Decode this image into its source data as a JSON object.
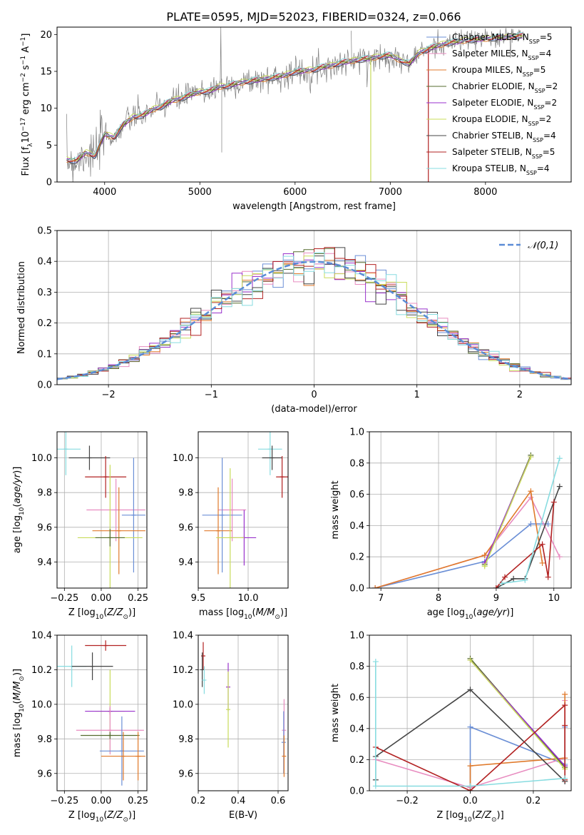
{
  "figure_title": "PLATE=0595, MJD=52023, FIBERID=0324, z=0.066",
  "colors": {
    "chabrier_miles": "#6b8fd6",
    "salpeter_miles": "#e88cc0",
    "kroupa_miles": "#e07a2b",
    "chabrier_elodie": "#556b2f",
    "salpeter_elodie": "#9932cc",
    "kroupa_elodie": "#c8dc5a",
    "chabrier_stelib": "#444444",
    "salpeter_stelib": "#b22222",
    "kroupa_stelib": "#87dce0",
    "data": "#7f7f7f",
    "gaussian": "#5b8cd6"
  },
  "chart_data": [
    {
      "id": "spectrum",
      "type": "line",
      "xlabel": "wavelength [Angstrom, rest frame]",
      "ylabel": "Flux [f_λ10^-17 erg cm^-2 s^-1 A^-1]",
      "xlim": [
        3500,
        8900
      ],
      "ylim": [
        0,
        21
      ],
      "xticks": [
        4000,
        5000,
        6000,
        7000,
        8000
      ],
      "yticks": [
        0,
        5,
        10,
        15,
        20
      ],
      "legend_position": "upper right",
      "legend": [
        {
          "text": "Chabrier MILES, N",
          "sub": "SSP",
          "val": "=5",
          "color": "chabrier_miles"
        },
        {
          "text": "Salpeter MILES, N",
          "sub": "SSP",
          "val": "=4",
          "color": "salpeter_miles"
        },
        {
          "text": "Kroupa MILES, N",
          "sub": "SSP",
          "val": "=5",
          "color": "kroupa_miles"
        },
        {
          "text": "Chabrier ELODIE, N",
          "sub": "SSP",
          "val": "=2",
          "color": "chabrier_elodie"
        },
        {
          "text": "Salpeter ELODIE, N",
          "sub": "SSP",
          "val": "=2",
          "color": "salpeter_elodie"
        },
        {
          "text": "Kroupa ELODIE, N",
          "sub": "SSP",
          "val": "=2",
          "color": "kroupa_elodie"
        },
        {
          "text": "Chabrier STELIB, N",
          "sub": "SSP",
          "val": "=4",
          "color": "chabrier_stelib"
        },
        {
          "text": "Salpeter STELIB, N",
          "sub": "SSP",
          "val": "=5",
          "color": "salpeter_stelib"
        },
        {
          "text": "Kroupa STELIB, N",
          "sub": "SSP",
          "val": "=4",
          "color": "kroupa_stelib"
        }
      ],
      "continuum": {
        "x": [
          3600,
          3700,
          3800,
          3900,
          4000,
          4100,
          4200,
          4300,
          4400,
          4500,
          4600,
          4700,
          4800,
          4900,
          5000,
          5100,
          5200,
          5300,
          5400,
          5500,
          5600,
          5700,
          5800,
          5900,
          6000,
          6100,
          6200,
          6300,
          6400,
          6500,
          6600,
          6700,
          6800,
          6900,
          7000,
          7100,
          7200,
          7300,
          7400,
          7500,
          7600,
          7700,
          7800,
          7900,
          8000,
          8100,
          8200,
          8300,
          8400
        ],
        "y": [
          3.0,
          2.8,
          4.0,
          3.5,
          6.5,
          6.0,
          7.8,
          8.8,
          9.0,
          9.8,
          10.2,
          11.0,
          11.3,
          11.8,
          12.2,
          12.3,
          12.9,
          13.0,
          13.4,
          13.6,
          13.8,
          14.0,
          14.2,
          14.5,
          14.9,
          15.1,
          15.2,
          15.6,
          15.8,
          16.2,
          16.4,
          16.6,
          16.8,
          17.0,
          17.2,
          16.5,
          16.0,
          17.5,
          18.0,
          18.5,
          18.8,
          19.0,
          19.2,
          19.3,
          19.4,
          19.5,
          19.6,
          19.7,
          19.8
        ]
      },
      "model_offsets": [
        0.0,
        0.15,
        -0.1,
        0.05,
        -0.05,
        0.2,
        -0.15,
        0.1,
        0.25
      ],
      "dropouts": [
        {
          "model": "kroupa_elodie",
          "x": 6795
        },
        {
          "model": "salpeter_stelib",
          "x": 7400
        }
      ]
    },
    {
      "id": "residuals",
      "type": "histogram",
      "xlabel": "(data-model)/error",
      "ylabel": "Normed distribution",
      "xlim": [
        -2.5,
        2.5
      ],
      "ylim": [
        0,
        0.5
      ],
      "xticks": [
        -2,
        -1,
        0,
        1,
        2
      ],
      "yticks": [
        0.0,
        0.1,
        0.2,
        0.3,
        0.4,
        0.5
      ],
      "legend": "𝒩(0,1)",
      "bins": {
        "start": -2.5,
        "width": 0.1,
        "count": 50
      },
      "gaussian": {
        "mean": 0,
        "sigma": 1
      }
    },
    {
      "id": "age_vs_Z",
      "type": "errorbar",
      "xlabel": "Z [log10(Z/Z⊙)]",
      "ylabel": "age  [log10(age/yr)]",
      "xlim": [
        -0.3,
        0.31
      ],
      "ylim": [
        9.25,
        10.15
      ],
      "xticks": [
        -0.25,
        0.0,
        0.25
      ],
      "yticks": [
        9.4,
        9.6,
        9.8,
        10.0
      ],
      "points": [
        {
          "m": "kroupa_stelib",
          "x": -0.24,
          "xe": 0.1,
          "y": 10.05,
          "ye": 0.15
        },
        {
          "m": "chabrier_stelib",
          "x": -0.08,
          "xe": 0.14,
          "y": 10.0,
          "ye": 0.07
        },
        {
          "m": "salpeter_stelib",
          "x": 0.03,
          "xe": 0.14,
          "y": 9.89,
          "ye": 0.12
        },
        {
          "m": "salpeter_miles",
          "x": 0.1,
          "xe": 0.2,
          "y": 9.7,
          "ye": 0.18
        },
        {
          "m": "chabrier_miles",
          "x": 0.22,
          "xe": 0.08,
          "y": 9.67,
          "ye": 0.33
        },
        {
          "m": "kroupa_miles",
          "x": 0.12,
          "xe": 0.18,
          "y": 9.58,
          "ye": 0.25
        },
        {
          "m": "kroupa_elodie",
          "x": 0.06,
          "xe": 0.22,
          "y": 9.54,
          "ye": 0.42
        },
        {
          "m": "chabrier_elodie",
          "x": 0.06,
          "xe": 0.1,
          "y": 9.54,
          "ye": 0.05
        }
      ]
    },
    {
      "id": "age_vs_mass",
      "type": "errorbar",
      "xlabel": "mass [log10(M/M⊙)]",
      "ylabel": "",
      "xlim": [
        9.5,
        10.4
      ],
      "ylim": [
        9.25,
        10.15
      ],
      "xticks": [
        9.5,
        10.0
      ],
      "yticks": [
        9.4,
        9.6,
        9.8,
        10.0
      ],
      "points": [
        {
          "m": "kroupa_stelib",
          "x": 10.22,
          "xe": 0.12,
          "y": 10.05,
          "ye": 0.15
        },
        {
          "m": "chabrier_stelib",
          "x": 10.24,
          "xe": 0.1,
          "y": 10.0,
          "ye": 0.07
        },
        {
          "m": "salpeter_stelib",
          "x": 10.34,
          "xe": 0.06,
          "y": 9.89,
          "ye": 0.12
        },
        {
          "m": "salpeter_miles",
          "x": 9.84,
          "xe": 0.14,
          "y": 9.7,
          "ye": 0.18
        },
        {
          "m": "chabrier_miles",
          "x": 9.74,
          "xe": 0.2,
          "y": 9.67,
          "ye": 0.33
        },
        {
          "m": "kroupa_miles",
          "x": 9.7,
          "xe": 0.14,
          "y": 9.58,
          "ye": 0.25
        },
        {
          "m": "salpeter_elodie",
          "x": 9.96,
          "xe": 0.12,
          "y": 9.54,
          "ye": 0.16
        },
        {
          "m": "kroupa_elodie",
          "x": 9.82,
          "xe": 0.14,
          "y": 9.54,
          "ye": 0.4
        }
      ]
    },
    {
      "id": "weight_vs_age",
      "type": "line",
      "xlabel": "age  [log10(age/yr)]",
      "ylabel": "mass weight",
      "xlim": [
        6.8,
        10.3
      ],
      "ylim": [
        0,
        1
      ],
      "xticks": [
        7,
        8,
        9,
        10
      ],
      "yticks": [
        0.0,
        0.2,
        0.4,
        0.6,
        0.8,
        1.0
      ],
      "series": [
        {
          "m": "chabrier_miles",
          "x": [
            6.9,
            8.8,
            9.6,
            9.9
          ],
          "y": [
            0.0,
            0.17,
            0.41,
            0.41
          ]
        },
        {
          "m": "salpeter_miles",
          "x": [
            6.9,
            8.8,
            9.6,
            10.1
          ],
          "y": [
            0.0,
            0.21,
            0.58,
            0.2
          ]
        },
        {
          "m": "kroupa_miles",
          "x": [
            6.9,
            8.8,
            9.6,
            9.8
          ],
          "y": [
            0.0,
            0.21,
            0.62,
            0.16
          ]
        },
        {
          "m": "chabrier_elodie",
          "x": [
            8.8,
            9.6
          ],
          "y": [
            0.15,
            0.85
          ]
        },
        {
          "m": "salpeter_elodie",
          "x": [
            8.8,
            9.6
          ],
          "y": [
            0.16,
            0.84
          ]
        },
        {
          "m": "kroupa_elodie",
          "x": [
            8.8,
            9.6
          ],
          "y": [
            0.14,
            0.84
          ]
        },
        {
          "m": "chabrier_stelib",
          "x": [
            9.0,
            9.3,
            9.5,
            10.1
          ],
          "y": [
            0.0,
            0.06,
            0.06,
            0.65
          ]
        },
        {
          "m": "salpeter_stelib",
          "x": [
            9.0,
            9.15,
            9.8,
            9.9,
            10.0
          ],
          "y": [
            0.0,
            0.07,
            0.28,
            0.07,
            0.55
          ]
        },
        {
          "m": "kroupa_stelib",
          "x": [
            9.1,
            9.5,
            10.1
          ],
          "y": [
            0.03,
            0.05,
            0.83
          ]
        }
      ]
    },
    {
      "id": "mass_vs_Z",
      "type": "errorbar",
      "xlabel": "Z [log10(Z/Z⊙)]",
      "ylabel": "mass [log10(M/M⊙)]",
      "xlim": [
        -0.3,
        0.31
      ],
      "ylim": [
        9.5,
        10.4
      ],
      "xticks": [
        -0.25,
        0.0,
        0.25
      ],
      "yticks": [
        9.6,
        9.8,
        10.0,
        10.2,
        10.4
      ],
      "points": [
        {
          "m": "salpeter_stelib",
          "x": 0.03,
          "xe": 0.14,
          "y": 10.34,
          "ye": 0.03
        },
        {
          "m": "kroupa_stelib",
          "x": -0.2,
          "xe": 0.1,
          "y": 10.22,
          "ye": 0.12
        },
        {
          "m": "chabrier_stelib",
          "x": -0.06,
          "xe": 0.14,
          "y": 10.22,
          "ye": 0.08
        },
        {
          "m": "kroupa_elodie",
          "x": 0.06,
          "xe": 0.1,
          "y": 9.96,
          "ye": 0.24
        },
        {
          "m": "salpeter_elodie",
          "x": 0.06,
          "xe": 0.17,
          "y": 9.96,
          "ye": 0.02
        },
        {
          "m": "salpeter_miles",
          "x": 0.06,
          "xe": 0.23,
          "y": 9.85,
          "ye": 0.14
        },
        {
          "m": "chabrier_elodie",
          "x": 0.06,
          "xe": 0.2,
          "y": 9.82,
          "ye": 0.02
        },
        {
          "m": "chabrier_miles",
          "x": 0.14,
          "xe": 0.15,
          "y": 9.73,
          "ye": 0.2
        },
        {
          "m": "kroupa_miles",
          "x": 0.15,
          "xe": 0.15,
          "y": 9.7,
          "ye": 0.14
        },
        {
          "m": "kroupa_miles",
          "x": 0.25,
          "xe": 0.02,
          "y": 9.7,
          "ye": 0.14
        }
      ]
    },
    {
      "id": "mass_vs_ebv",
      "type": "errorbar",
      "xlabel": "E(B-V)",
      "ylabel": "",
      "xlim": [
        0.2,
        0.65
      ],
      "ylim": [
        9.5,
        10.4
      ],
      "xticks": [
        0.2,
        0.4,
        0.6
      ],
      "yticks": [
        9.6,
        9.8,
        10.0,
        10.2,
        10.4
      ],
      "points": [
        {
          "m": "salpeter_stelib",
          "x": 0.225,
          "xe": 0.0,
          "y": 10.28,
          "ye": 0.08
        },
        {
          "m": "chabrier_stelib",
          "x": 0.22,
          "xe": 0.0,
          "y": 10.2,
          "ye": 0.1
        },
        {
          "m": "kroupa_stelib",
          "x": 0.23,
          "xe": 0.0,
          "y": 10.14,
          "ye": 0.08
        },
        {
          "m": "salpeter_elodie",
          "x": 0.35,
          "xe": 0.0,
          "y": 10.1,
          "ye": 0.14
        },
        {
          "m": "kroupa_elodie",
          "x": 0.35,
          "xe": 0.0,
          "y": 9.97,
          "ye": 0.22
        },
        {
          "m": "salpeter_miles",
          "x": 0.63,
          "xe": 0.0,
          "y": 9.85,
          "ye": 0.18
        },
        {
          "m": "chabrier_miles",
          "x": 0.628,
          "xe": 0.0,
          "y": 9.78,
          "ye": 0.18
        },
        {
          "m": "kroupa_miles",
          "x": 0.63,
          "xe": 0.0,
          "y": 9.7,
          "ye": 0.12
        }
      ]
    },
    {
      "id": "weight_vs_Z",
      "type": "line",
      "xlabel": "Z [log10(Z/Z⊙)]",
      "ylabel": "mass weight",
      "xlim": [
        -0.32,
        0.32
      ],
      "ylim": [
        0,
        1
      ],
      "xticks": [
        -0.2,
        0.0,
        0.2
      ],
      "yticks": [
        0.0,
        0.2,
        0.4,
        0.6,
        0.8,
        1.0
      ],
      "series": [
        {
          "m": "chabrier_miles",
          "x": [
            0.0,
            0.0,
            0.3,
            0.3
          ],
          "y": [
            0.0,
            0.41,
            0.17,
            0.41
          ]
        },
        {
          "m": "salpeter_miles",
          "x": [
            -0.3,
            0.0,
            0.3,
            0.3
          ],
          "y": [
            0.2,
            0.02,
            0.21,
            0.58
          ]
        },
        {
          "m": "kroupa_miles",
          "x": [
            0.0,
            0.0,
            0.3,
            0.3
          ],
          "y": [
            0.0,
            0.16,
            0.21,
            0.62
          ]
        },
        {
          "m": "chabrier_elodie",
          "x": [
            0.0,
            0.3
          ],
          "y": [
            0.85,
            0.15
          ]
        },
        {
          "m": "salpeter_elodie",
          "x": [
            0.0,
            0.3
          ],
          "y": [
            0.84,
            0.16
          ]
        },
        {
          "m": "kroupa_elodie",
          "x": [
            0.0,
            0.3
          ],
          "y": [
            0.84,
            0.14
          ]
        },
        {
          "m": "chabrier_stelib",
          "x": [
            -0.3,
            -0.3,
            0.0,
            0.3,
            0.3
          ],
          "y": [
            0.07,
            0.22,
            0.65,
            0.06,
            0.06
          ]
        },
        {
          "m": "salpeter_stelib",
          "x": [
            -0.3,
            0.0,
            0.3,
            0.3,
            0.3
          ],
          "y": [
            0.28,
            0.0,
            0.55,
            0.07,
            0.42
          ]
        },
        {
          "m": "kroupa_stelib",
          "x": [
            -0.3,
            -0.3,
            0.0,
            0.3
          ],
          "y": [
            0.83,
            0.03,
            0.03,
            0.08
          ]
        }
      ]
    }
  ]
}
